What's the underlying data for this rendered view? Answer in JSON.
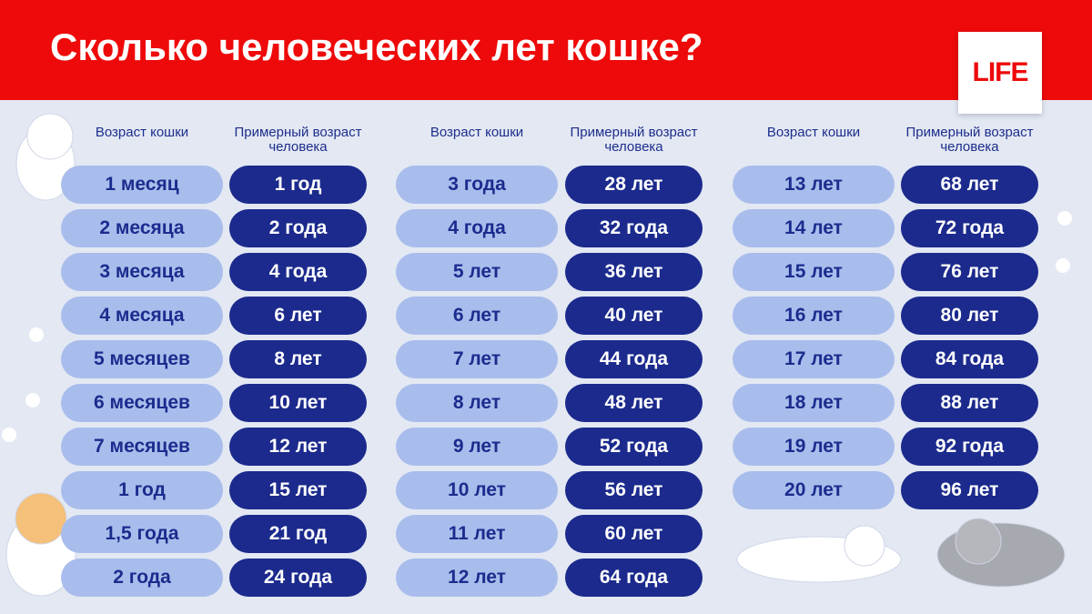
{
  "header": {
    "title": "Сколько человеческих лет кошке?",
    "logo": "LIFE"
  },
  "columns": [
    {
      "headers": [
        "Возраст кошки",
        "Примерный возраст человека"
      ],
      "rows": [
        [
          "1 месяц",
          "1 год"
        ],
        [
          "2 месяца",
          "2 года"
        ],
        [
          "3 месяца",
          "4 года"
        ],
        [
          "4 месяца",
          "6 лет"
        ],
        [
          "5 месяцев",
          "8 лет"
        ],
        [
          "6 месяцев",
          "10 лет"
        ],
        [
          "7 месяцев",
          "12 лет"
        ],
        [
          "1 год",
          "15 лет"
        ],
        [
          "1,5 года",
          "21 год"
        ],
        [
          "2 года",
          "24 года"
        ]
      ]
    },
    {
      "headers": [
        "Возраст кошки",
        "Примерный возраст человека"
      ],
      "rows": [
        [
          "3 года",
          "28 лет"
        ],
        [
          "4 года",
          "32 года"
        ],
        [
          "5 лет",
          "36 лет"
        ],
        [
          "6 лет",
          "40 лет"
        ],
        [
          "7 лет",
          "44 года"
        ],
        [
          "8 лет",
          "48 лет"
        ],
        [
          "9 лет",
          "52 года"
        ],
        [
          "10 лет",
          "56 лет"
        ],
        [
          "11 лет",
          "60 лет"
        ],
        [
          "12 лет",
          "64 года"
        ]
      ]
    },
    {
      "headers": [
        "Возраст кошки",
        "Примерный возраст человека"
      ],
      "rows": [
        [
          "13 лет",
          "68 лет"
        ],
        [
          "14 лет",
          "72 года"
        ],
        [
          "15 лет",
          "76 лет"
        ],
        [
          "16 лет",
          "80 лет"
        ],
        [
          "17 лет",
          "84 года"
        ],
        [
          "18 лет",
          "88 лет"
        ],
        [
          "19 лет",
          "92 года"
        ],
        [
          "20 лет",
          "96 лет"
        ]
      ]
    }
  ]
}
